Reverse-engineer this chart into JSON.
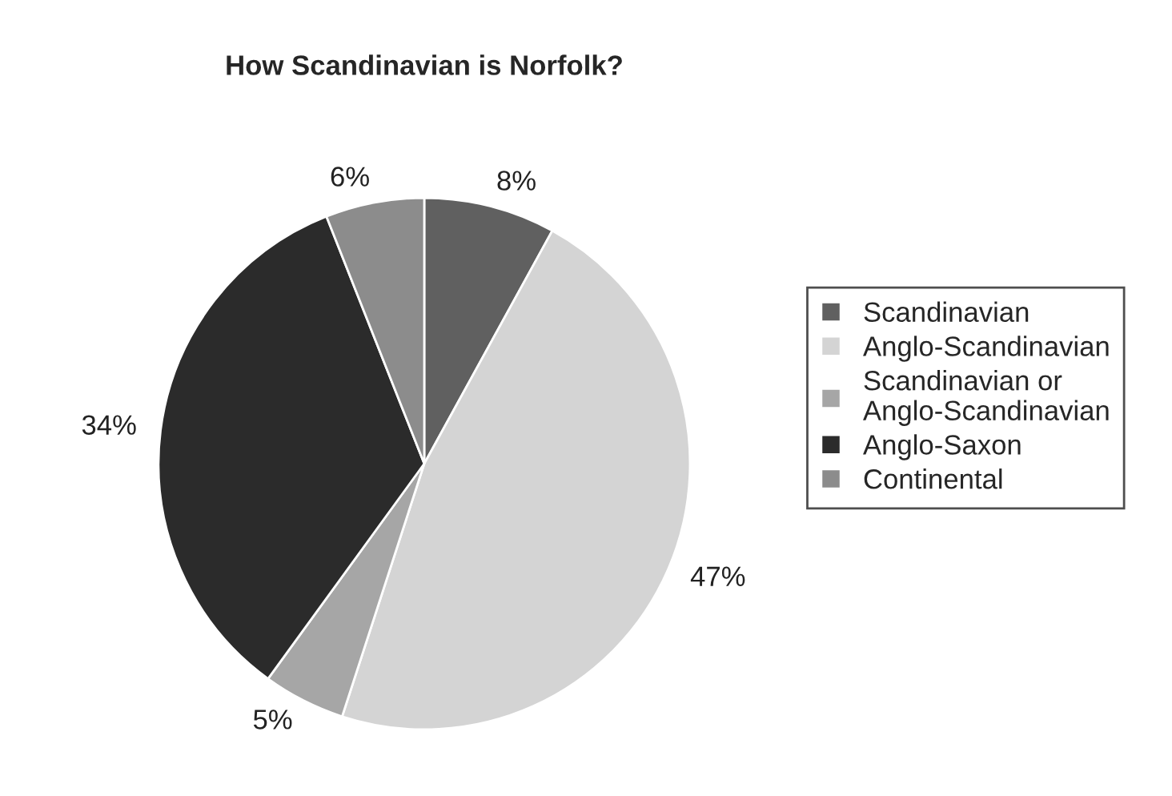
{
  "chart_data": {
    "type": "pie",
    "title": "How Scandinavian is Norfolk?",
    "categories": [
      "Scandinavian",
      "Anglo-Scandinavian",
      "Scandinavian or\nAnglo-Scandinavian",
      "Anglo-Saxon",
      "Continental"
    ],
    "values": [
      8,
      47,
      5,
      34,
      6
    ],
    "colors": [
      "#606060",
      "#d4d4d4",
      "#a6a6a6",
      "#2b2b2b",
      "#8c8c8c"
    ],
    "value_labels": [
      "8%",
      "47%",
      "5%",
      "34%",
      "6%"
    ],
    "legend": "right"
  }
}
